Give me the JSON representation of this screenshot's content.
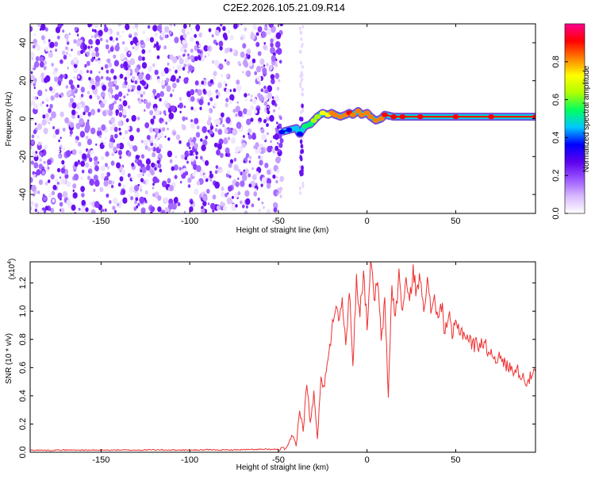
{
  "chart_data": [
    {
      "type": "heatmap",
      "title": "C2E2.2026.105.21.09.R14",
      "xlabel": "Height of straight line (km)",
      "ylabel": "Frequency (Hz)",
      "xlim": [
        -190,
        95
      ],
      "ylim": [
        -50,
        50
      ],
      "x_ticks": [
        -150,
        -100,
        -50,
        0,
        50
      ],
      "y_ticks": [
        -40,
        -20,
        0,
        20,
        40
      ],
      "x_tick_labels": [
        "-150",
        "-100",
        "-50",
        "0",
        "50"
      ],
      "y_tick_labels": [
        "-40",
        "-20",
        "0",
        "20",
        "40"
      ],
      "colorbar": {
        "label": "Normalized spectral amplitude",
        "range": [
          0.0,
          1.0
        ],
        "ticks": [
          0.0,
          0.2,
          0.4,
          0.6,
          0.8
        ],
        "tick_labels": [
          "0.0",
          "0.2",
          "0.4",
          "0.6",
          "0.8"
        ],
        "colors": [
          "#ffffff",
          "#d8b8ff",
          "#9a55ff",
          "#5a00ee",
          "#0000ff",
          "#00c8ff",
          "#00ff60",
          "#b0ff00",
          "#ffff00",
          "#ff8000",
          "#ff0000",
          "#ff0090"
        ]
      },
      "noise_region_x": [
        -190,
        -48
      ],
      "noise_intensity": 0.18,
      "noise_color": "#7a2cff",
      "signal_trace": {
        "x": [
          -48,
          -44,
          -40,
          -38,
          -35,
          -32,
          -30,
          -28,
          -25,
          -22,
          -20,
          -18,
          -15,
          -12,
          -10,
          -8,
          -5,
          -3,
          0,
          2,
          5,
          8,
          10,
          15,
          20,
          30,
          50,
          70,
          95
        ],
        "y": [
          -7,
          -6,
          -5,
          -8,
          -4,
          -3,
          -1,
          1,
          3,
          2,
          3,
          2,
          1,
          2,
          3,
          2,
          4,
          2,
          3,
          1,
          -1,
          0,
          2,
          1,
          1,
          1,
          1,
          1,
          1
        ],
        "amplitude": [
          0.35,
          0.4,
          0.45,
          0.4,
          0.5,
          0.55,
          0.6,
          0.6,
          0.7,
          0.72,
          0.78,
          0.8,
          0.85,
          0.82,
          0.88,
          0.85,
          0.8,
          0.82,
          0.78,
          0.8,
          0.82,
          0.85,
          0.88,
          0.9,
          0.92,
          0.94,
          0.95,
          0.95,
          0.95
        ]
      },
      "spike_x": -37
    },
    {
      "type": "line",
      "xlabel": "Height of straight line (km)",
      "ylabel": "SNR (10 * v/v)",
      "multiplier_base": "(x10",
      "multiplier_exp": "4",
      "multiplier_close": ")",
      "xlim": [
        -190,
        95
      ],
      "ylim": [
        0.0,
        1.35
      ],
      "x_ticks": [
        -150,
        -100,
        -50,
        0,
        50
      ],
      "y_ticks": [
        0.0,
        0.2,
        0.4,
        0.6,
        0.8,
        1.0,
        1.2
      ],
      "x_tick_labels": [
        "-150",
        "-100",
        "-50",
        "0",
        "50"
      ],
      "y_tick_labels": [
        "0.0",
        "0.2",
        "0.4",
        "0.6",
        "0.8",
        "1.0",
        "1.2"
      ],
      "line_color": "#ee3030",
      "series": [
        {
          "name": "SNR",
          "x": [
            -190,
            -180,
            -170,
            -160,
            -150,
            -140,
            -130,
            -120,
            -110,
            -100,
            -90,
            -80,
            -70,
            -60,
            -50,
            -45,
            -42,
            -40,
            -38,
            -36,
            -34,
            -32,
            -30,
            -28,
            -26,
            -24,
            -22,
            -20,
            -18,
            -16,
            -14,
            -12,
            -10,
            -8,
            -6,
            -4,
            -2,
            0,
            2,
            4,
            6,
            8,
            10,
            12,
            14,
            16,
            18,
            20,
            22,
            24,
            26,
            28,
            30,
            32,
            34,
            36,
            38,
            40,
            42,
            44,
            46,
            48,
            50,
            55,
            60,
            65,
            70,
            75,
            80,
            85,
            90,
            95
          ],
          "y": [
            0.015,
            0.014,
            0.016,
            0.015,
            0.014,
            0.016,
            0.015,
            0.017,
            0.016,
            0.015,
            0.017,
            0.016,
            0.018,
            0.02,
            0.02,
            0.03,
            0.12,
            0.05,
            0.3,
            0.15,
            0.5,
            0.2,
            0.42,
            0.08,
            0.55,
            0.45,
            0.7,
            0.85,
            1.05,
            0.98,
            1.1,
            0.72,
            1.18,
            0.6,
            1.22,
            1.0,
            1.28,
            0.9,
            1.34,
            1.1,
            1.2,
            0.8,
            1.05,
            0.4,
            1.18,
            0.95,
            1.26,
            1.0,
            1.22,
            1.05,
            1.3,
            1.12,
            1.25,
            1.05,
            1.2,
            1.0,
            1.12,
            0.92,
            1.05,
            0.85,
            0.98,
            0.82,
            0.9,
            0.84,
            0.76,
            0.78,
            0.7,
            0.66,
            0.6,
            0.58,
            0.5,
            0.57
          ]
        }
      ]
    }
  ]
}
